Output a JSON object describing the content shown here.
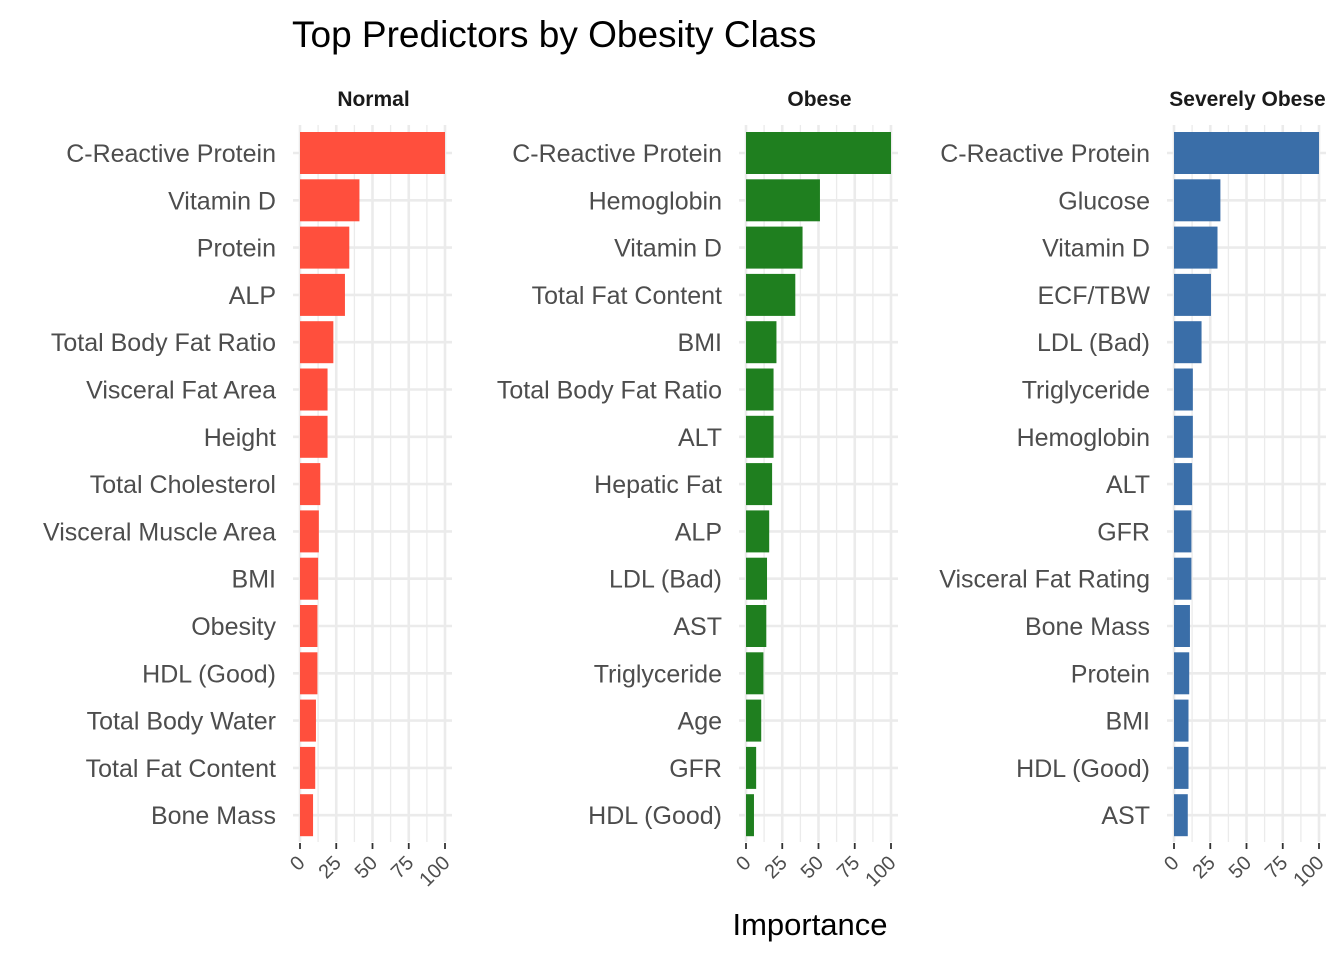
{
  "chart_data": {
    "type": "bar",
    "orientation": "horizontal",
    "title": "Top Predictors by Obesity Class",
    "xlabel": "Importance",
    "ylabel": "",
    "xlim": [
      0,
      100
    ],
    "xticks": [
      "0",
      "25",
      "50",
      "75",
      "100"
    ],
    "grid": true,
    "legend": "none",
    "facets": [
      {
        "name": "Normal",
        "color": "#FF4F3D",
        "categories": [
          "C-Reactive Protein",
          "Vitamin D",
          "Protein",
          "ALP",
          "Total Body Fat Ratio",
          "Visceral Fat Area",
          "Height",
          "Total Cholesterol",
          "Visceral Muscle Area",
          "BMI",
          "Obesity",
          "HDL (Good)",
          "Total Body Water",
          "Total Fat Content",
          "Bone Mass"
        ],
        "values": [
          100,
          41,
          34,
          31,
          23,
          19,
          19,
          14,
          13,
          12.5,
          12,
          12,
          11,
          10.5,
          9
        ]
      },
      {
        "name": "Obese",
        "color": "#1F7F1F",
        "categories": [
          "C-Reactive Protein",
          "Hemoglobin",
          "Vitamin D",
          "Total Fat Content",
          "BMI",
          "Total Body Fat Ratio",
          "ALT",
          "Hepatic Fat",
          "ALP",
          "LDL (Bad)",
          "AST",
          "Triglyceride",
          "Age",
          "GFR",
          "HDL (Good)"
        ],
        "values": [
          100,
          51,
          39,
          34,
          21,
          19,
          19,
          18,
          16,
          14.5,
          14,
          12,
          10.5,
          7,
          5.5
        ]
      },
      {
        "name": "Severely Obese",
        "color": "#3A6EA8",
        "categories": [
          "C-Reactive Protein",
          "Glucose",
          "Vitamin D",
          "ECF/TBW",
          "LDL (Bad)",
          "Triglyceride",
          "Hemoglobin",
          "ALT",
          "GFR",
          "Visceral Fat Rating",
          "Bone Mass",
          "Protein",
          "BMI",
          "HDL (Good)",
          "AST"
        ],
        "values": [
          100,
          32,
          30,
          25.5,
          19,
          13,
          13,
          12.5,
          12,
          12,
          11,
          10.5,
          10,
          10,
          9.5
        ]
      }
    ]
  }
}
